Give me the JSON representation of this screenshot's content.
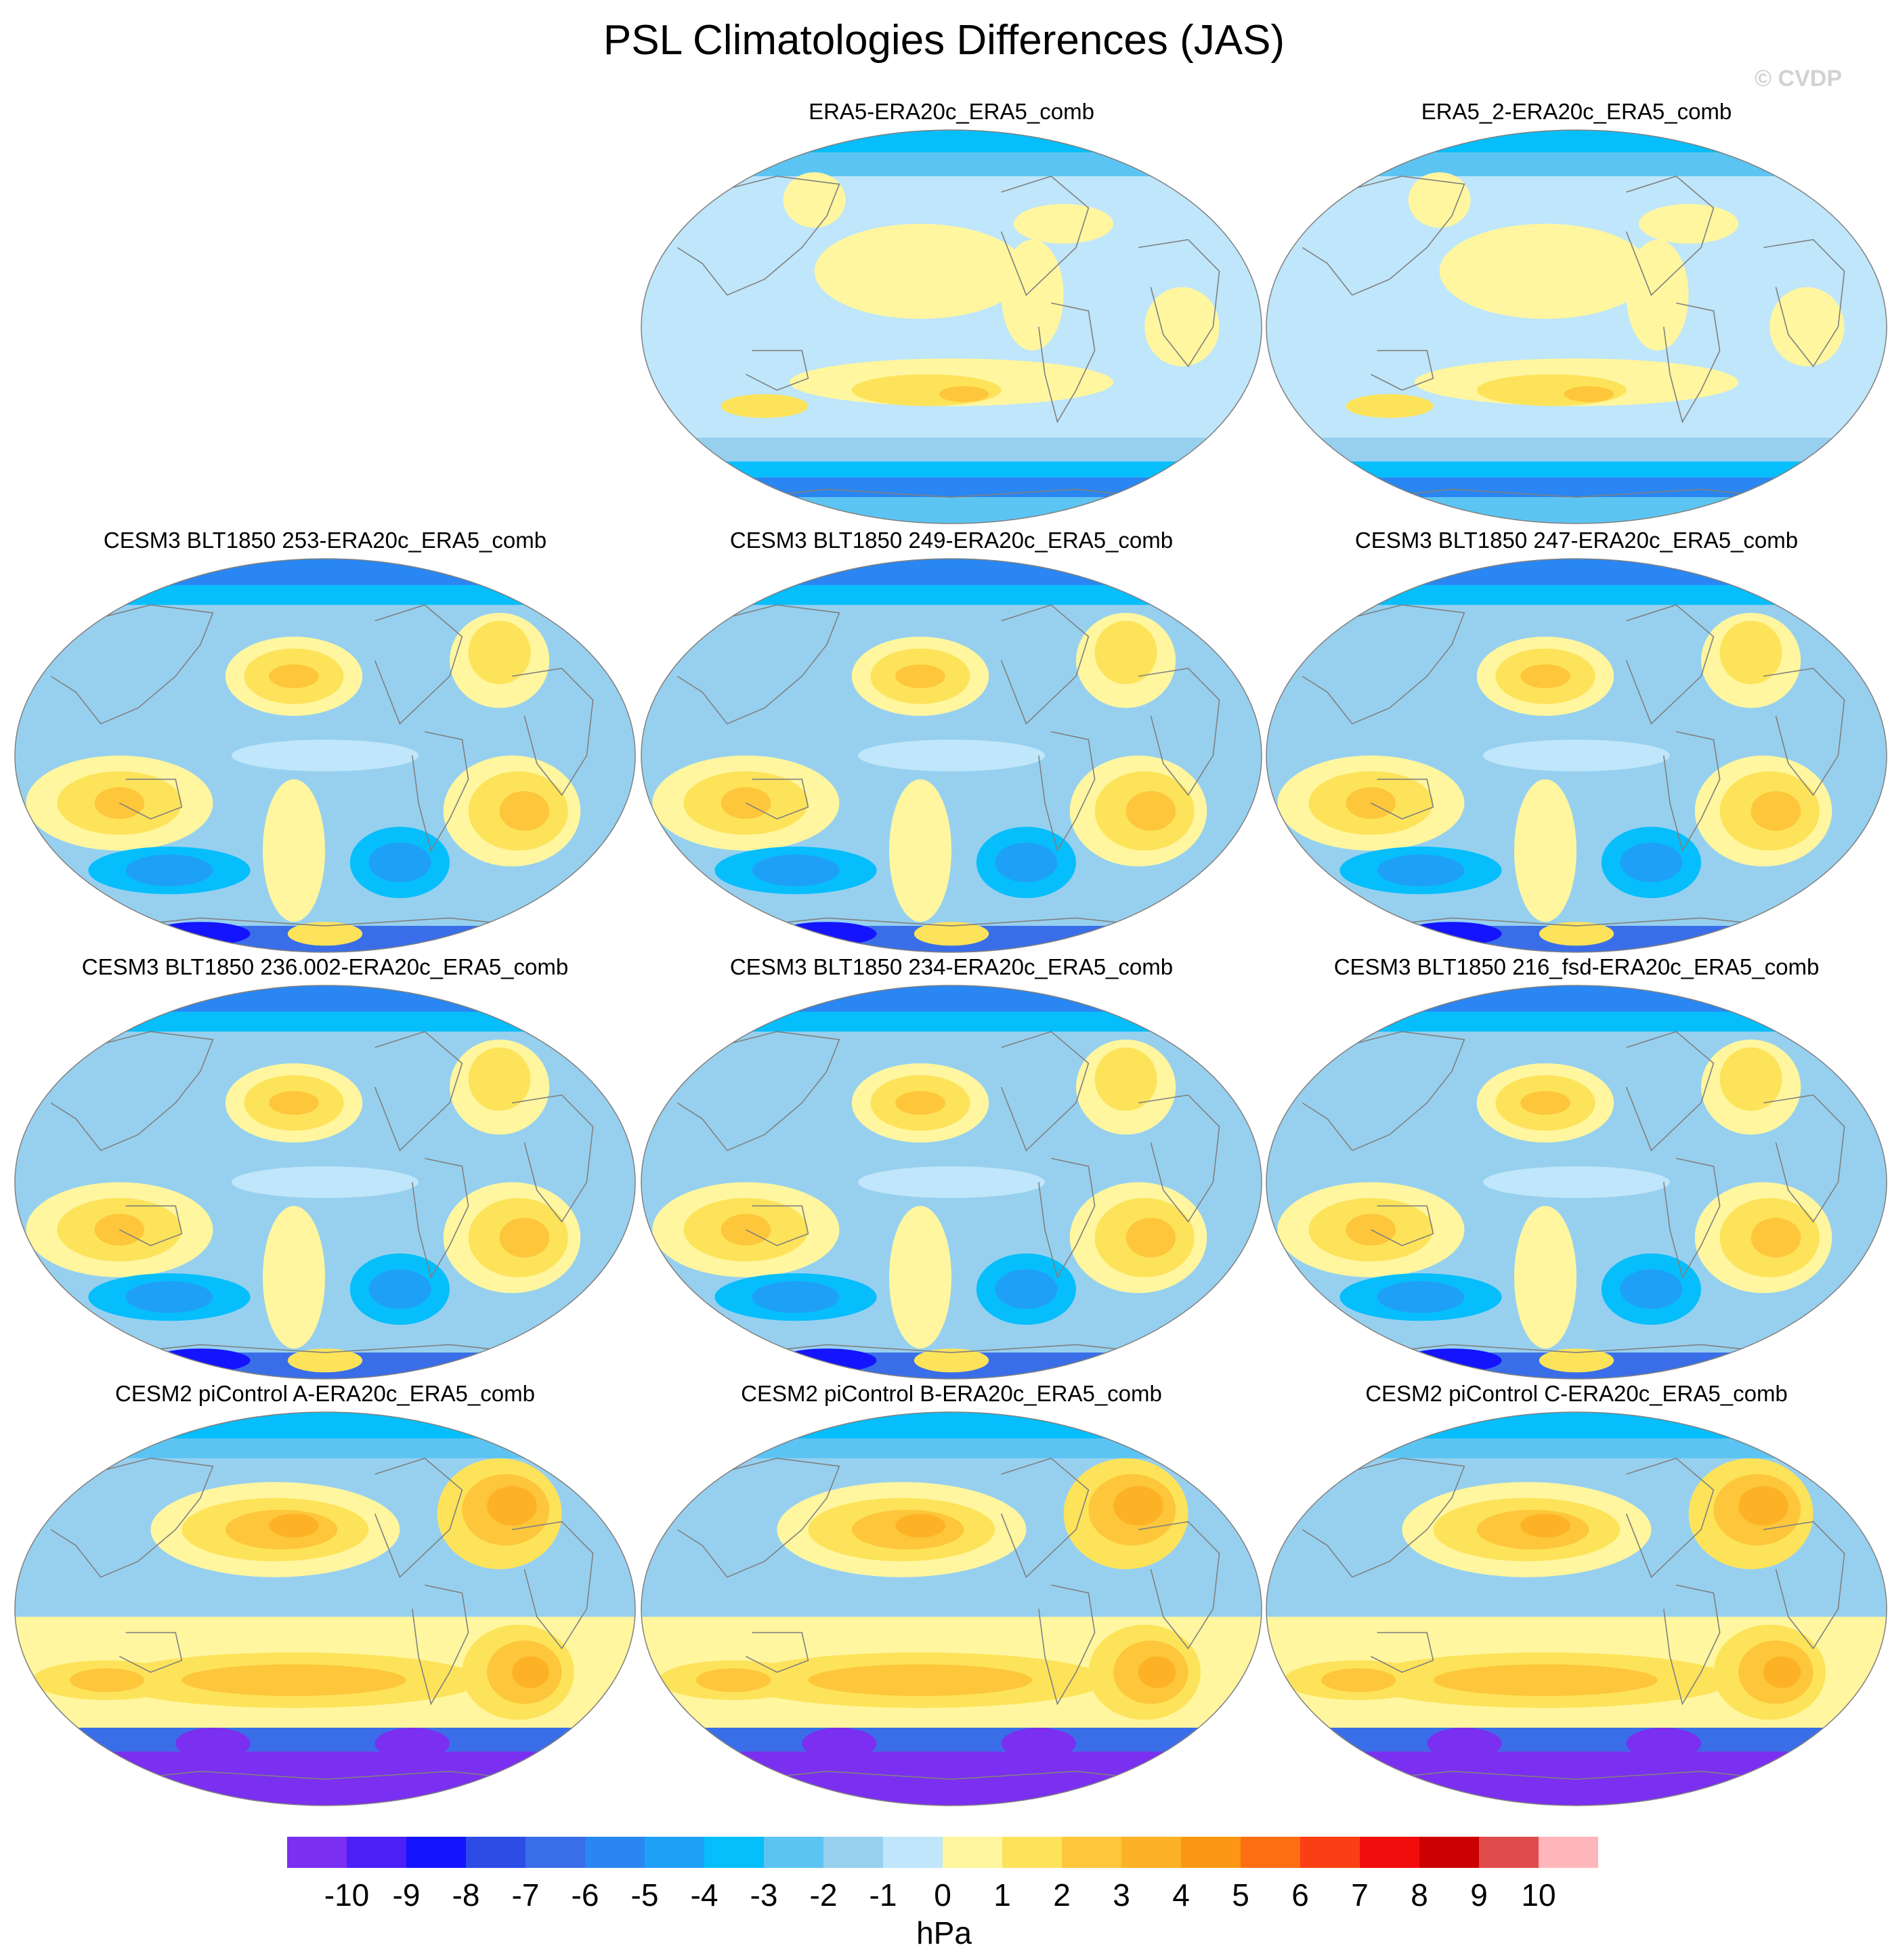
{
  "title": "PSL Climatologies Differences (JAS)",
  "watermark": "© CVDP",
  "colors": {
    "coastline": "#808080",
    "levels": [
      "#7b2ff0",
      "#4b1ff5",
      "#1414ff",
      "#2d4ce6",
      "#3a6ee8",
      "#2a86f2",
      "#1fa0f7",
      "#06befb",
      "#5cc4f2",
      "#97d0ef",
      "#bfe6fa",
      "#fff69f",
      "#fde35a",
      "#fdc63b",
      "#fdb226",
      "#fd9713",
      "#fd6e13",
      "#fb3f14",
      "#f20d0d",
      "#cc0000",
      "#e04b4b",
      "#ffb6ba"
    ]
  },
  "panels": [
    {
      "title": "ERA5-ERA20c_ERA5_comb",
      "pattern": "reanalysis"
    },
    {
      "title": "ERA5_2-ERA20c_ERA5_comb",
      "pattern": "reanalysis"
    },
    {
      "title": "CESM3 BLT1850 253-ERA20c_ERA5_comb",
      "pattern": "cesm3"
    },
    {
      "title": "CESM3 BLT1850 249-ERA20c_ERA5_comb",
      "pattern": "cesm3"
    },
    {
      "title": "CESM3 BLT1850 247-ERA20c_ERA5_comb",
      "pattern": "cesm3"
    },
    {
      "title": "CESM3 BLT1850 236.002-ERA20c_ERA5_comb",
      "pattern": "cesm3"
    },
    {
      "title": "CESM3 BLT1850 234-ERA20c_ERA5_comb",
      "pattern": "cesm3"
    },
    {
      "title": "CESM3 BLT1850 216_fsd-ERA20c_ERA5_comb",
      "pattern": "cesm3"
    },
    {
      "title": "CESM2 piControl A-ERA20c_ERA5_comb",
      "pattern": "cesm2"
    },
    {
      "title": "CESM2 piControl B-ERA20c_ERA5_comb",
      "pattern": "cesm2"
    },
    {
      "title": "CESM2 piControl C-ERA20c_ERA5_comb",
      "pattern": "cesm2"
    }
  ],
  "colorbar": {
    "tick_labels": [
      "-10",
      "-9",
      "-8",
      "-7",
      "-6",
      "-5",
      "-4",
      "-3",
      "-2",
      "-1",
      "0",
      "1",
      "2",
      "3",
      "4",
      "5",
      "6",
      "7",
      "8",
      "9",
      "10"
    ],
    "units": "hPa"
  }
}
